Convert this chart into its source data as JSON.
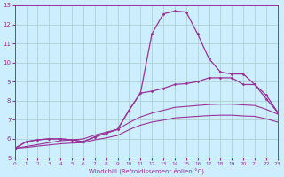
{
  "xlabel": "Windchill (Refroidissement éolien,°C)",
  "background_color": "#cceeff",
  "line_color": "#993399",
  "grid_color": "#aacccc",
  "xlim": [
    0,
    23
  ],
  "ylim": [
    5,
    13
  ],
  "x": [
    0,
    1,
    2,
    3,
    4,
    5,
    6,
    7,
    8,
    9,
    10,
    11,
    12,
    13,
    14,
    15,
    16,
    17,
    18,
    19,
    20,
    21,
    22,
    23
  ],
  "y_spike": [
    5.5,
    5.85,
    5.95,
    6.0,
    6.0,
    5.95,
    5.85,
    6.1,
    6.3,
    6.5,
    7.5,
    8.4,
    11.5,
    12.55,
    12.7,
    12.65,
    11.5,
    10.2,
    9.5,
    9.4,
    9.4,
    8.85,
    8.3,
    7.4
  ],
  "y_mid": [
    5.5,
    5.85,
    5.95,
    6.0,
    6.0,
    5.95,
    5.85,
    6.1,
    6.3,
    6.5,
    7.5,
    8.4,
    8.5,
    8.65,
    8.85,
    8.9,
    9.0,
    9.2,
    9.2,
    9.2,
    8.85,
    8.85,
    8.1,
    7.4
  ],
  "y_upper_lin": [
    5.5,
    5.6,
    5.7,
    5.8,
    5.9,
    5.95,
    6.0,
    6.2,
    6.35,
    6.5,
    6.85,
    7.15,
    7.35,
    7.5,
    7.65,
    7.7,
    7.75,
    7.8,
    7.82,
    7.82,
    7.78,
    7.75,
    7.55,
    7.3
  ],
  "y_lower_lin": [
    5.5,
    5.55,
    5.62,
    5.68,
    5.74,
    5.78,
    5.8,
    5.95,
    6.05,
    6.18,
    6.48,
    6.72,
    6.88,
    6.98,
    7.1,
    7.14,
    7.18,
    7.22,
    7.24,
    7.24,
    7.2,
    7.18,
    7.05,
    6.88
  ]
}
